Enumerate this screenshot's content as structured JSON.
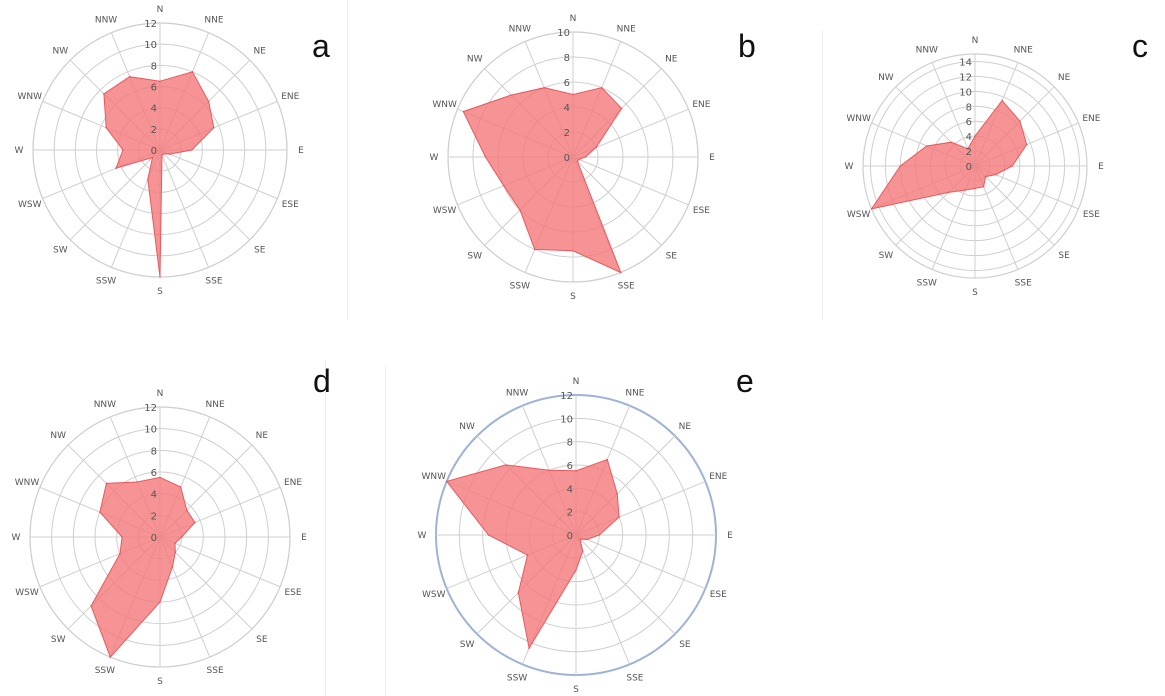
{
  "colors": {
    "fill": "#f4787b",
    "fill_opacity": 0.8,
    "stroke": "#e8595d",
    "grid": "#cfcfcf",
    "outer_ring_e": "#9fb3d6",
    "text": "#555555"
  },
  "chart_data": [
    {
      "type": "radar",
      "panel": "a",
      "directions": [
        "N",
        "NNE",
        "NE",
        "ENE",
        "E",
        "ESE",
        "SE",
        "SSE",
        "S",
        "SSW",
        "SW",
        "WSW",
        "W",
        "WNW",
        "NW",
        "NNW"
      ],
      "values": [
        6.5,
        8,
        6.5,
        5.5,
        3,
        1,
        0.5,
        0.5,
        12,
        3,
        1,
        4.5,
        3.5,
        5.5,
        7.5,
        7.5
      ],
      "ticks": [
        "0",
        "2",
        "4",
        "6",
        "8",
        "10",
        "12"
      ],
      "rmax": 12
    },
    {
      "type": "radar",
      "panel": "b",
      "directions": [
        "N",
        "NNE",
        "NE",
        "ENE",
        "E",
        "ESE",
        "SE",
        "SSE",
        "S",
        "SSW",
        "SW",
        "WSW",
        "W",
        "WNW",
        "NW",
        "NNW"
      ],
      "values": [
        5,
        6,
        5.5,
        2,
        1,
        0.5,
        0.5,
        10,
        7.5,
        8,
        6,
        6,
        7,
        9.5,
        7,
        6
      ],
      "ticks": [
        "0",
        "2",
        "4",
        "6",
        "8",
        "10"
      ],
      "rmax": 10
    },
    {
      "type": "radar",
      "panel": "c",
      "directions": [
        "N",
        "NNE",
        "NE",
        "ENE",
        "E",
        "ESE",
        "SE",
        "SSE",
        "S",
        "SSW",
        "SW",
        "WSW",
        "W",
        "WNW",
        "NW",
        "NNW"
      ],
      "values": [
        4,
        9.5,
        8.5,
        7.5,
        5,
        3,
        2,
        3,
        3,
        3.5,
        5,
        15,
        10,
        7,
        4.5,
        2.5
      ],
      "ticks": [
        "0",
        "2",
        "4",
        "6",
        "8",
        "10",
        "12",
        "14"
      ],
      "rmax": 15
    },
    {
      "type": "radar",
      "panel": "d",
      "directions": [
        "N",
        "NNE",
        "NE",
        "ENE",
        "E",
        "ESE",
        "SE",
        "SSE",
        "S",
        "SSW",
        "SW",
        "WSW",
        "W",
        "WNW",
        "NW",
        "NNW"
      ],
      "values": [
        5.5,
        5,
        3.5,
        3.5,
        2,
        1.5,
        2,
        3,
        6,
        12,
        9,
        4,
        3.5,
        6,
        7,
        5.5
      ],
      "ticks": [
        "0",
        "2",
        "4",
        "6",
        "8",
        "10",
        "12"
      ],
      "rmax": 12
    },
    {
      "type": "radar",
      "panel": "e",
      "directions": [
        "N",
        "NNE",
        "NE",
        "ENE",
        "E",
        "ESE",
        "SE",
        "SSE",
        "S",
        "SSW",
        "SW",
        "WSW",
        "W",
        "WNW",
        "NW",
        "NNW"
      ],
      "values": [
        5.5,
        7,
        5,
        4,
        2,
        1,
        0.5,
        1.5,
        3,
        10.5,
        7,
        4.5,
        7.5,
        12,
        8.5,
        6
      ],
      "ticks": [
        "0",
        "2",
        "4",
        "6",
        "8",
        "10",
        "12"
      ],
      "rmax": 12
    }
  ]
}
